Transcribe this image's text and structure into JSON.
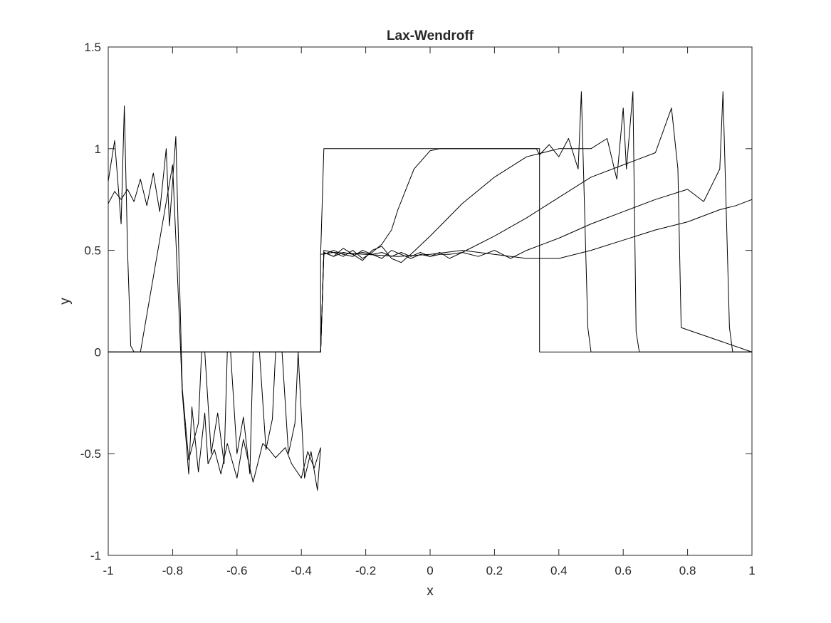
{
  "chart_data": {
    "type": "line",
    "title": "Lax-Wendroff",
    "xlabel": "x",
    "ylabel": "y",
    "xlim": [
      -1,
      1
    ],
    "ylim": [
      -1,
      1.5
    ],
    "xticks": [
      -1,
      -0.8,
      -0.6,
      -0.4,
      -0.2,
      0,
      0.2,
      0.4,
      0.6,
      0.8,
      1
    ],
    "xtick_labels": [
      "-1",
      "-0.8",
      "-0.6",
      "-0.4",
      "-0.2",
      "0",
      "0.2",
      "0.4",
      "0.6",
      "0.8",
      "1"
    ],
    "yticks": [
      -1,
      -0.5,
      0,
      0.5,
      1,
      1.5
    ],
    "ytick_labels": [
      "-1",
      "-0.5",
      "0",
      "0.5",
      "1",
      "1.5"
    ],
    "grid": false,
    "legend": false,
    "line_color": "#000000",
    "series": [
      {
        "x": [
          -1,
          -0.34,
          -0.34,
          -0.33,
          0.33,
          0.34,
          0.34,
          1
        ],
        "y": [
          0,
          0,
          0.48,
          1,
          1,
          1,
          0,
          0
        ]
      },
      {
        "x": [
          -1,
          -0.34,
          -0.33,
          -0.3,
          -0.27,
          -0.24,
          -0.21,
          -0.18,
          -0.15,
          -0.12,
          -0.1,
          -0.05,
          0,
          0.03,
          0.1,
          0.2,
          0.3,
          0.33,
          0.34,
          0.37,
          0.4,
          0.43,
          0.46,
          0.47,
          0.49,
          0.5,
          1
        ],
        "y": [
          0,
          0,
          0.5,
          0.49,
          0.47,
          0.5,
          0.46,
          0.49,
          0.53,
          0.6,
          0.7,
          0.9,
          0.99,
          1.0,
          1.0,
          1.0,
          1.0,
          1.0,
          0.97,
          1.02,
          0.96,
          1.05,
          0.9,
          1.28,
          0.12,
          0,
          0
        ]
      },
      {
        "x": [
          -1,
          -0.34,
          -0.33,
          -0.3,
          -0.27,
          -0.24,
          -0.21,
          -0.18,
          -0.15,
          -0.12,
          -0.09,
          -0.06,
          0,
          0.1,
          0.2,
          0.3,
          0.4,
          0.5,
          0.55,
          0.58,
          0.6,
          0.61,
          0.63,
          0.64,
          0.65,
          1
        ],
        "y": [
          0,
          0,
          0.49,
          0.47,
          0.51,
          0.48,
          0.45,
          0.5,
          0.52,
          0.46,
          0.44,
          0.48,
          0.57,
          0.73,
          0.86,
          0.96,
          1.0,
          1.0,
          1.05,
          0.85,
          1.2,
          0.9,
          1.28,
          0.1,
          0,
          0
        ]
      },
      {
        "x": [
          -1,
          -0.34,
          -0.33,
          -0.3,
          -0.27,
          -0.24,
          -0.21,
          -0.18,
          -0.15,
          -0.12,
          -0.09,
          -0.06,
          -0.03,
          0,
          0.03,
          0.06,
          0.1,
          0.2,
          0.3,
          0.4,
          0.5,
          0.6,
          0.7,
          0.75,
          0.77,
          0.78,
          1
        ],
        "y": [
          0,
          0,
          0.48,
          0.5,
          0.48,
          0.47,
          0.5,
          0.48,
          0.46,
          0.5,
          0.48,
          0.46,
          0.48,
          0.47,
          0.49,
          0.46,
          0.49,
          0.57,
          0.66,
          0.76,
          0.86,
          0.92,
          0.98,
          1.2,
          0.9,
          0.12,
          0
        ]
      },
      {
        "x": [
          -1,
          -0.34,
          -0.33,
          -0.3,
          -0.27,
          -0.24,
          -0.21,
          -0.18,
          -0.15,
          -0.12,
          -0.09,
          -0.06,
          -0.03,
          0,
          0.03,
          0.06,
          0.1,
          0.15,
          0.2,
          0.25,
          0.3,
          0.4,
          0.5,
          0.6,
          0.7,
          0.8,
          0.85,
          0.9,
          0.91,
          0.93,
          0.94,
          1
        ],
        "y": [
          0,
          0,
          0.49,
          0.47,
          0.49,
          0.48,
          0.49,
          0.48,
          0.49,
          0.47,
          0.49,
          0.47,
          0.49,
          0.47,
          0.48,
          0.48,
          0.49,
          0.47,
          0.5,
          0.46,
          0.5,
          0.56,
          0.63,
          0.69,
          0.75,
          0.8,
          0.74,
          0.9,
          1.28,
          0.12,
          0,
          0
        ]
      },
      {
        "x": [
          -0.34,
          -0.3,
          -0.2,
          -0.1,
          0,
          0.1,
          0.2,
          0.3,
          0.4,
          0.5,
          0.6,
          0.7,
          0.8,
          0.9,
          0.95,
          1
        ],
        "y": [
          0.48,
          0.49,
          0.48,
          0.47,
          0.48,
          0.5,
          0.48,
          0.46,
          0.46,
          0.5,
          0.55,
          0.6,
          0.64,
          0.7,
          0.72,
          0.75
        ]
      },
      {
        "x": [
          -1,
          -0.98,
          -0.96,
          -0.95,
          -0.94,
          -0.93,
          -0.92,
          -0.91,
          -0.9,
          -0.8,
          -0.78,
          -0.77,
          -0.75,
          -0.74,
          -0.72,
          -0.7,
          -0.69,
          -0.67,
          -0.65,
          -0.63,
          -0.6,
          -0.58,
          -0.55,
          -0.52,
          -0.5,
          -0.48,
          -0.45,
          -0.43,
          -0.4,
          -0.38,
          -0.36,
          -0.34
        ],
        "y": [
          0.84,
          1.04,
          0.63,
          1.21,
          0.5,
          0.03,
          0,
          0,
          0,
          0.92,
          0.2,
          -0.2,
          -0.6,
          -0.27,
          -0.59,
          -0.3,
          -0.55,
          -0.48,
          -0.6,
          -0.45,
          -0.62,
          -0.43,
          -0.64,
          -0.45,
          -0.48,
          -0.52,
          -0.47,
          -0.55,
          -0.62,
          -0.49,
          -0.57,
          -0.47
        ]
      },
      {
        "x": [
          -1,
          -0.98,
          -0.96,
          -0.94,
          -0.92,
          -0.9,
          -0.88,
          -0.86,
          -0.84,
          -0.82,
          -0.81,
          -0.79,
          -0.77,
          -0.75,
          -0.72,
          -0.71,
          -0.7,
          -0.68,
          -0.66,
          -0.64,
          -0.63,
          -0.62,
          -0.6,
          -0.58,
          -0.56,
          -0.55,
          -0.53,
          -0.51,
          -0.49,
          -0.48,
          -0.46,
          -0.44,
          -0.42,
          -0.41,
          -0.39,
          -0.37,
          -0.35,
          -0.34
        ],
        "y": [
          0.73,
          0.79,
          0.75,
          0.8,
          0.74,
          0.85,
          0.72,
          0.88,
          0.69,
          1.0,
          0.62,
          1.06,
          -0.18,
          -0.53,
          -0.35,
          0,
          0,
          -0.5,
          -0.3,
          -0.55,
          0,
          0,
          -0.5,
          -0.32,
          -0.6,
          0,
          0,
          -0.48,
          -0.33,
          0,
          0,
          -0.5,
          -0.35,
          0,
          -0.62,
          -0.49,
          -0.68,
          -0.47
        ]
      }
    ]
  }
}
